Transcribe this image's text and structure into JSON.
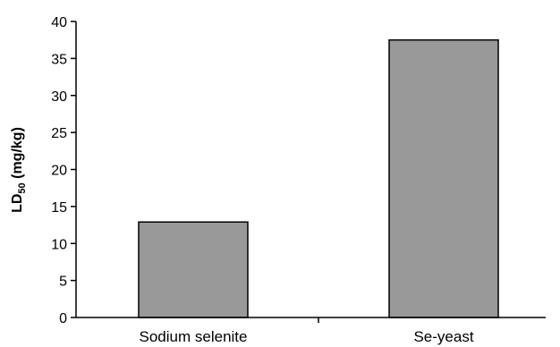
{
  "chart_data": {
    "type": "bar",
    "categories": [
      "Sodium selenite",
      "Se-yeast"
    ],
    "values": [
      12.9,
      37.5
    ],
    "ylim": [
      0,
      40
    ],
    "yticks": [
      0,
      5,
      10,
      15,
      20,
      25,
      30,
      35,
      40
    ],
    "ylabel": {
      "prefix": "LD",
      "subscript": "50",
      "suffix": " (mg/kg)"
    },
    "xlabel": "",
    "title": "",
    "grid": false,
    "colors": {
      "bar_fill": "#999999",
      "bar_stroke": "#000000",
      "axis": "#000000"
    }
  }
}
